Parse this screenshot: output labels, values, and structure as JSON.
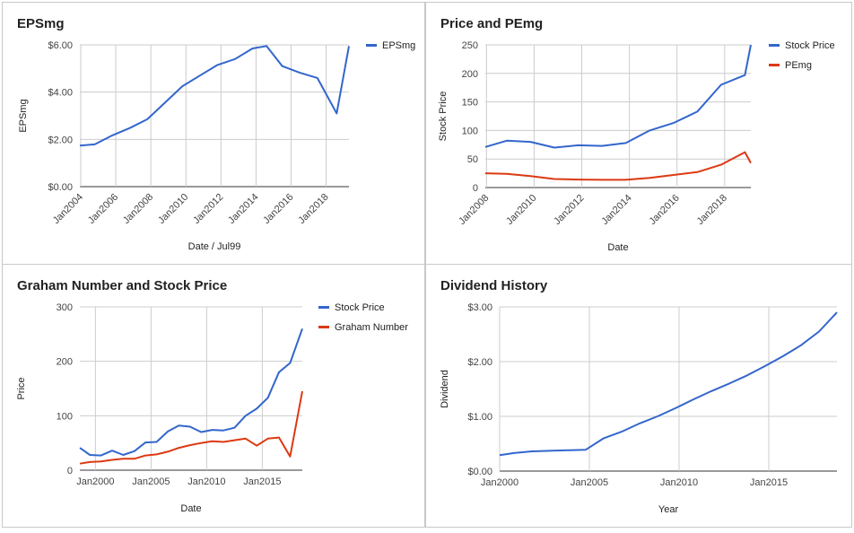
{
  "chart_data": [
    {
      "type": "line",
      "title": "EPSmg",
      "xlabel": "Date / Jul99",
      "ylabel": "EPSmg",
      "x_ticks": [
        "Jan2004",
        "Jan2006",
        "Jan2008",
        "Jan2010",
        "Jan2012",
        "Jan2014",
        "Jan2016",
        "Jan2018"
      ],
      "y_ticks": [
        "$0.00",
        "$2.00",
        "$4.00",
        "$6.00"
      ],
      "xlim": [
        2003.95,
        2019.3
      ],
      "ylim": [
        0,
        6
      ],
      "legend_position": "right",
      "series": [
        {
          "name": "EPSmg",
          "color": "#3366cc",
          "x": [
            2003.95,
            2004.8,
            2005.8,
            2006.8,
            2007.8,
            2008.8,
            2009.8,
            2010.8,
            2011.8,
            2012.8,
            2013.8,
            2014.6,
            2015.5,
            2016.5,
            2017.5,
            2018.6,
            2019.3
          ],
          "y": [
            1.74,
            1.79,
            2.17,
            2.48,
            2.85,
            3.55,
            4.25,
            4.7,
            5.15,
            5.4,
            5.85,
            5.95,
            5.1,
            4.82,
            4.6,
            3.1,
            5.95
          ]
        }
      ]
    },
    {
      "type": "line",
      "title": "Price and PEmg",
      "xlabel": "Date",
      "ylabel": "Stock Price",
      "x_ticks": [
        "Jan2008",
        "Jan2010",
        "Jan2012",
        "Jan2014",
        "Jan2016",
        "Jan2018"
      ],
      "y_ticks": [
        "0",
        "50",
        "100",
        "150",
        "200",
        "250"
      ],
      "xlim": [
        2007.95,
        2019.1
      ],
      "ylim": [
        0,
        250
      ],
      "legend_position": "right",
      "series": [
        {
          "name": "Stock Price",
          "color": "#3366cc",
          "x": [
            2007.95,
            2008.85,
            2009.85,
            2010.85,
            2011.85,
            2012.85,
            2013.85,
            2014.85,
            2015.85,
            2016.85,
            2017.85,
            2018.85,
            2019.1
          ],
          "y": [
            71,
            82,
            80,
            70,
            74,
            73,
            78,
            100,
            113,
            133,
            180,
            197,
            250
          ]
        },
        {
          "name": "PEmg",
          "color": "#dc3912",
          "x": [
            2007.95,
            2008.85,
            2009.85,
            2010.85,
            2011.85,
            2012.85,
            2013.85,
            2014.85,
            2015.85,
            2016.85,
            2017.85,
            2018.85,
            2019.1
          ],
          "y": [
            25,
            24,
            20,
            15,
            14,
            13.5,
            13.5,
            17,
            22,
            27,
            40,
            62,
            43
          ]
        }
      ]
    },
    {
      "type": "line",
      "title": "Graham Number and Stock Price",
      "xlabel": "Date",
      "ylabel": "Price",
      "x_ticks": [
        "Jan2000",
        "Jan2005",
        "Jan2010",
        "Jan2015"
      ],
      "y_ticks": [
        "0",
        "100",
        "200",
        "300"
      ],
      "xlim": [
        1998.6,
        2018.6
      ],
      "ylim": [
        0,
        300
      ],
      "legend_position": "right",
      "series": [
        {
          "name": "Stock Price",
          "color": "#3366cc",
          "x": [
            1998.6,
            1999.5,
            2000.5,
            2001.5,
            2002.5,
            2003.5,
            2004.5,
            2005.5,
            2006.5,
            2007.5,
            2008.5,
            2009.5,
            2010.5,
            2011.5,
            2012.5,
            2013.5,
            2014.5,
            2015.5,
            2016.5,
            2017.5,
            2018.6
          ],
          "y": [
            41,
            28,
            27,
            36,
            28,
            35,
            51,
            52,
            71,
            82,
            80,
            70,
            74,
            73,
            78,
            100,
            113,
            133,
            180,
            197,
            260
          ]
        },
        {
          "name": "Graham Number",
          "color": "#dc3912",
          "x": [
            1998.6,
            1999.5,
            2000.5,
            2001.5,
            2002.5,
            2003.5,
            2004.5,
            2005.5,
            2006.5,
            2007.5,
            2008.5,
            2009.5,
            2010.5,
            2011.5,
            2012.5,
            2013.5,
            2014.5,
            2015.5,
            2016.5,
            2017.5,
            2018.6
          ],
          "y": [
            12,
            15,
            16,
            19,
            21,
            21,
            27,
            29,
            34,
            41,
            46,
            50,
            53,
            52,
            55,
            58,
            45,
            58,
            60,
            25,
            145
          ]
        }
      ]
    },
    {
      "type": "line",
      "title": "Dividend History",
      "xlabel": "Year",
      "ylabel": "Dividend",
      "x_ticks": [
        "Jan2000",
        "Jan2005",
        "Jan2010",
        "Jan2015"
      ],
      "y_ticks": [
        "$0.00",
        "$1.00",
        "$2.00",
        "$3.00"
      ],
      "xlim": [
        2000,
        2018.8
      ],
      "ylim": [
        0,
        3
      ],
      "series": [
        {
          "name": "Dividend",
          "color": "#3366cc",
          "x": [
            2000,
            2000.8,
            2001.8,
            2002.8,
            2003.8,
            2004.8,
            2005.8,
            2006.8,
            2007.8,
            2008.8,
            2009.8,
            2010.8,
            2011.8,
            2012.8,
            2013.8,
            2014.8,
            2015.8,
            2016.8,
            2017.8,
            2018.8
          ],
          "y": [
            0.29,
            0.33,
            0.36,
            0.37,
            0.38,
            0.39,
            0.6,
            0.72,
            0.87,
            1.0,
            1.15,
            1.31,
            1.46,
            1.6,
            1.75,
            1.92,
            2.1,
            2.3,
            2.55,
            2.9
          ]
        }
      ]
    }
  ]
}
